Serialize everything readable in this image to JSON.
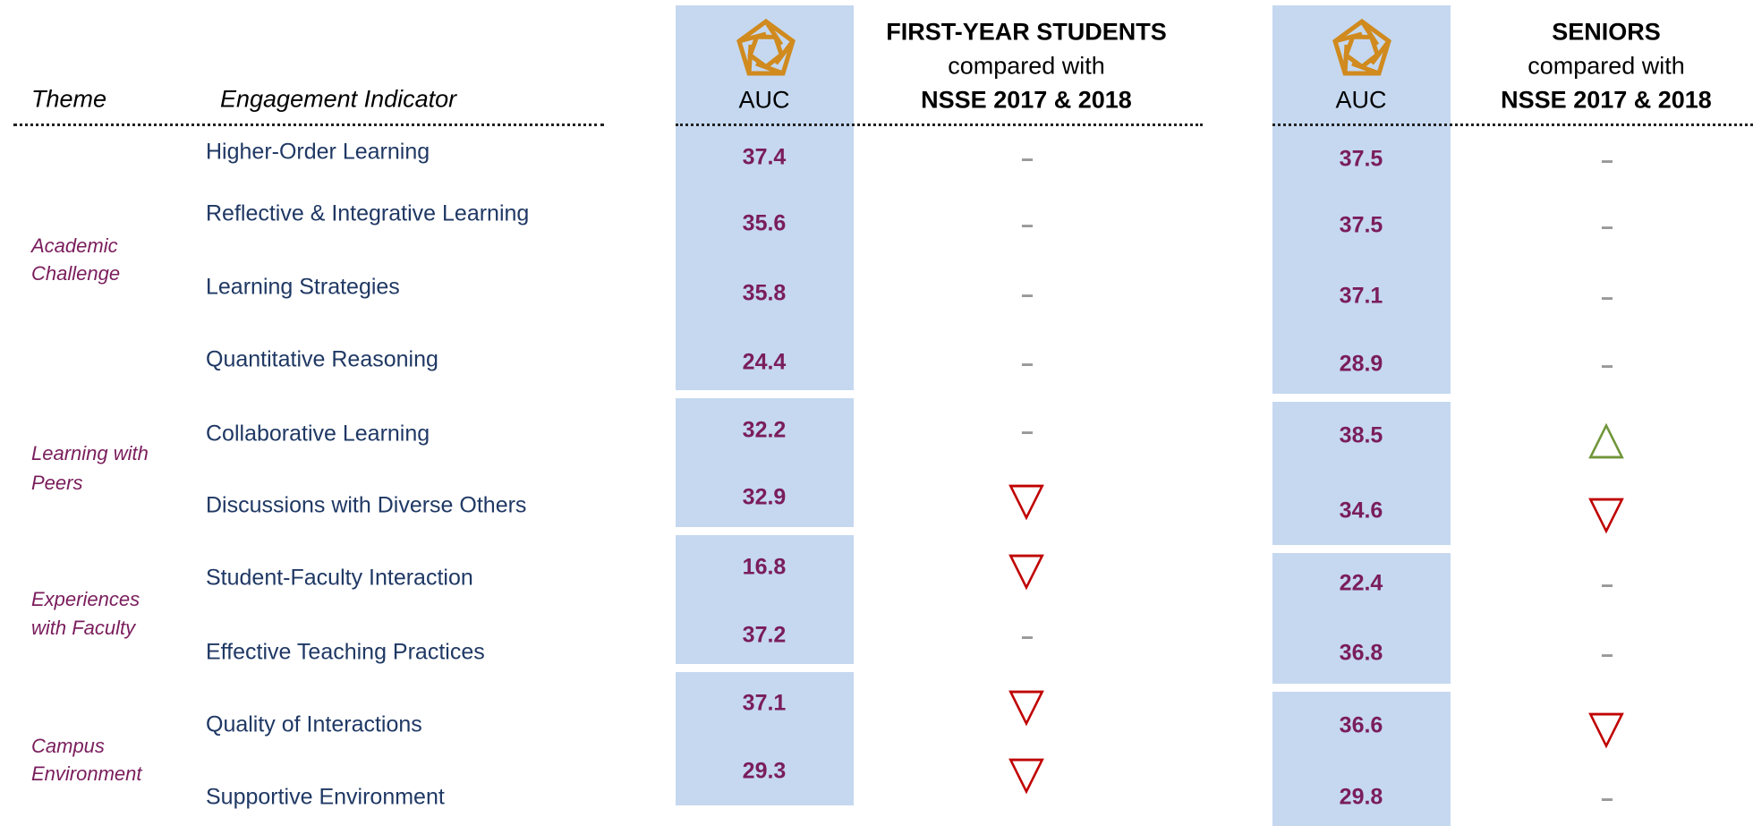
{
  "header": {
    "theme": "Theme",
    "indicator": "Engagement Indicator",
    "first_year": {
      "title": "FIRST-YEAR STUDENTS",
      "subtitle": "compared with",
      "comparison": "NSSE 2017 & 2018",
      "institution": "AUC"
    },
    "seniors": {
      "title": "SENIORS",
      "subtitle": "compared with",
      "comparison": "NSSE 2017 & 2018",
      "institution": "AUC"
    }
  },
  "themes": [
    {
      "lines": [
        "Academic",
        "Challenge"
      ]
    },
    {
      "lines": [
        "Learning with",
        "Peers"
      ]
    },
    {
      "lines": [
        "Experiences",
        "with Faculty"
      ]
    },
    {
      "lines": [
        "Campus",
        "Environment"
      ]
    }
  ],
  "rows": [
    {
      "indicator": "Higher-Order Learning",
      "first_year": {
        "value": 37.4,
        "comparison": "--"
      },
      "seniors": {
        "value": 37.5,
        "comparison": "--"
      }
    },
    {
      "indicator": "Reflective & Integrative Learning",
      "first_year": {
        "value": 35.6,
        "comparison": "--"
      },
      "seniors": {
        "value": 37.5,
        "comparison": "--"
      }
    },
    {
      "indicator": "Learning Strategies",
      "first_year": {
        "value": 35.8,
        "comparison": "--"
      },
      "seniors": {
        "value": 37.1,
        "comparison": "--"
      }
    },
    {
      "indicator": "Quantitative Reasoning",
      "first_year": {
        "value": 24.4,
        "comparison": "--"
      },
      "seniors": {
        "value": 28.9,
        "comparison": "--"
      }
    },
    {
      "indicator": "Collaborative Learning",
      "first_year": {
        "value": 32.2,
        "comparison": "--"
      },
      "seniors": {
        "value": 38.5,
        "comparison": "△"
      }
    },
    {
      "indicator": "Discussions with Diverse Others",
      "first_year": {
        "value": 32.9,
        "comparison": "▽"
      },
      "seniors": {
        "value": 34.6,
        "comparison": "▽"
      }
    },
    {
      "indicator": "Student-Faculty Interaction",
      "first_year": {
        "value": 16.8,
        "comparison": "▽"
      },
      "seniors": {
        "value": 22.4,
        "comparison": "--"
      }
    },
    {
      "indicator": "Effective Teaching Practices",
      "first_year": {
        "value": 37.2,
        "comparison": "--"
      },
      "seniors": {
        "value": 36.8,
        "comparison": "--"
      }
    },
    {
      "indicator": "Quality of Interactions",
      "first_year": {
        "value": 37.1,
        "comparison": "▽"
      },
      "seniors": {
        "value": 36.6,
        "comparison": "▽"
      }
    },
    {
      "indicator": "Supportive Environment",
      "first_year": {
        "value": 29.3,
        "comparison": "▽"
      },
      "seniors": {
        "value": 29.8,
        "comparison": "--"
      }
    }
  ]
}
